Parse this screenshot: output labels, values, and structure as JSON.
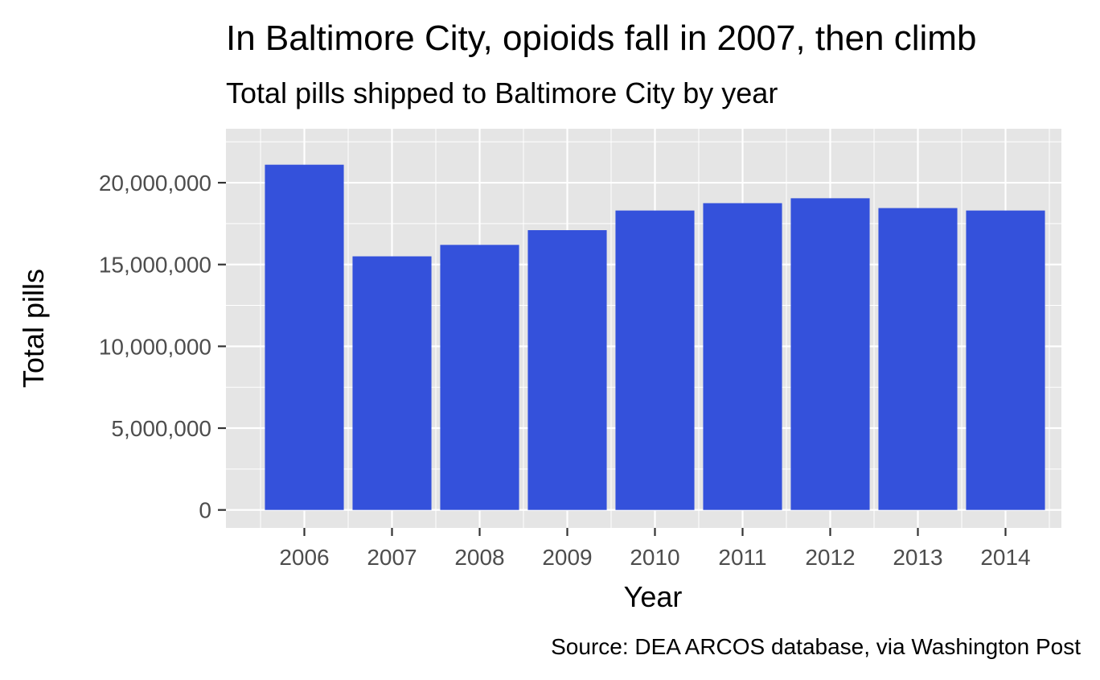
{
  "chart_data": {
    "type": "bar",
    "title": "In Baltimore City, opioids fall in 2007, then climb",
    "subtitle": "Total pills shipped to Baltimore City by year",
    "xlabel": "Year",
    "ylabel": "Total pills",
    "caption": "Source: DEA ARCOS database, via Washington Post",
    "categories": [
      "2006",
      "2007",
      "2008",
      "2009",
      "2010",
      "2011",
      "2012",
      "2013",
      "2014"
    ],
    "values": [
      21100000,
      15500000,
      16200000,
      17100000,
      18300000,
      18750000,
      19050000,
      18450000,
      18300000
    ],
    "ylim": [
      0,
      22200000
    ],
    "y_ticks": [
      0,
      5000000,
      10000000,
      15000000,
      20000000
    ],
    "y_tick_labels": [
      "0",
      "5,000,000",
      "10,000,000",
      "15,000,000",
      "20,000,000"
    ],
    "grid": true,
    "colors": {
      "bar": "#3451db",
      "panel": "#e5e5e5",
      "grid": "#ffffff"
    }
  }
}
